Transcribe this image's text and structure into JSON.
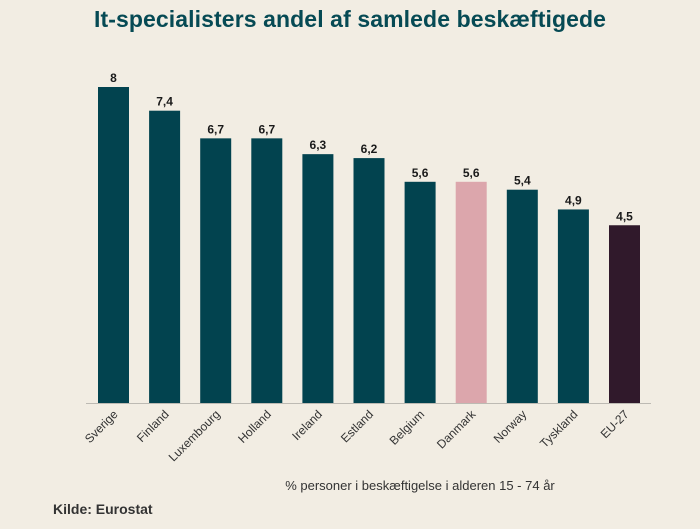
{
  "page": {
    "title": "It-specialisters andel af samlede beskæftigede",
    "caption": "% personer i beskæftigelse i alderen 15 - 74 år",
    "source": "Kilde: Eurostat"
  },
  "colors": {
    "background": "#f2ede3",
    "default_bar": "#02434f",
    "highlight_bar": "#dca6ac",
    "eu_bar": "#30192b",
    "title": "#064a54"
  },
  "chart_data": {
    "type": "bar",
    "title": "It-specialisters andel af samlede beskæftigede",
    "xlabel": "% personer i beskæftigelse i alderen 15 - 74 år",
    "ylabel": "",
    "ylim": [
      0,
      8
    ],
    "grid": false,
    "categories": [
      "Sverige",
      "Finland",
      "Luxembourg",
      "Holland",
      "Ireland",
      "Estland",
      "Belgium",
      "Danmark",
      "Norway",
      "Tyskland",
      "EU-27"
    ],
    "values": [
      8,
      7.4,
      6.7,
      6.7,
      6.3,
      6.2,
      5.6,
      5.6,
      5.4,
      4.9,
      4.5
    ],
    "value_labels": [
      "8",
      "7,4",
      "6,7",
      "6,7",
      "6,3",
      "6,2",
      "5,6",
      "5,6",
      "5,4",
      "4,9",
      "4,5"
    ],
    "bar_colors": [
      "#02434f",
      "#02434f",
      "#02434f",
      "#02434f",
      "#02434f",
      "#02434f",
      "#02434f",
      "#dca6ac",
      "#02434f",
      "#02434f",
      "#30192b"
    ]
  }
}
